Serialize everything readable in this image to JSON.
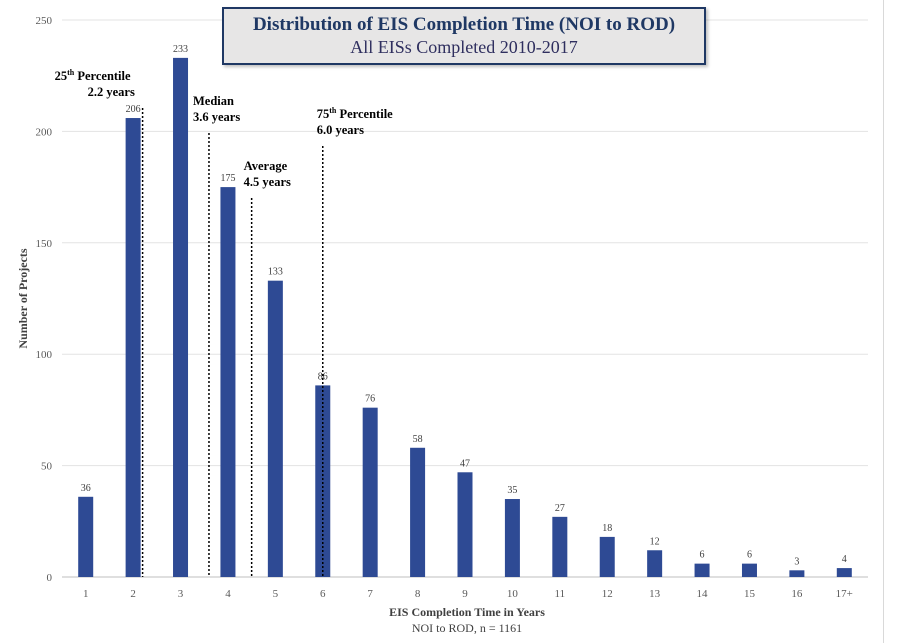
{
  "chart_data": {
    "type": "bar",
    "title": "Distribution of EIS Completion Time (NOI to ROD)",
    "subtitle": "All EISs Completed 2010-2017",
    "xlabel": "EIS Completion Time in Years",
    "xlabel_sub": "NOI to ROD, n = 1161",
    "ylabel": "Number of Projects",
    "ylim": [
      0,
      250
    ],
    "yticks": [
      "0",
      "50",
      "100",
      "150",
      "200",
      "250"
    ],
    "categories": [
      "1",
      "2",
      "3",
      "4",
      "5",
      "6",
      "7",
      "8",
      "9",
      "10",
      "11",
      "12",
      "13",
      "14",
      "15",
      "16",
      "17+"
    ],
    "values": [
      36,
      206,
      233,
      175,
      133,
      86,
      76,
      58,
      47,
      35,
      27,
      18,
      12,
      6,
      6,
      3,
      4
    ],
    "data_labels": [
      "36",
      "206",
      "233",
      "175",
      "133",
      "86",
      "76",
      "58",
      "47",
      "35",
      "27",
      "18",
      "12",
      "6",
      "6",
      "3",
      "4"
    ],
    "grid": true,
    "bar_color": "#2e4a94",
    "reference_lines": [
      {
        "name": "25th Percentile",
        "x_years": 2.2,
        "label_main": "25",
        "label_sup": "th",
        "label_rest": " Percentile",
        "label_value": "2.2 years"
      },
      {
        "name": "Median",
        "x_years": 3.6,
        "label_main": "Median",
        "label_sup": "",
        "label_rest": "",
        "label_value": "3.6 years"
      },
      {
        "name": "Average",
        "x_years": 4.5,
        "label_main": "Average",
        "label_sup": "",
        "label_rest": "",
        "label_value": "4.5 years"
      },
      {
        "name": "75th Percentile",
        "x_years": 6.0,
        "label_main": "75",
        "label_sup": "th",
        "label_rest": " Percentile",
        "label_value": "6.0 years"
      }
    ]
  }
}
